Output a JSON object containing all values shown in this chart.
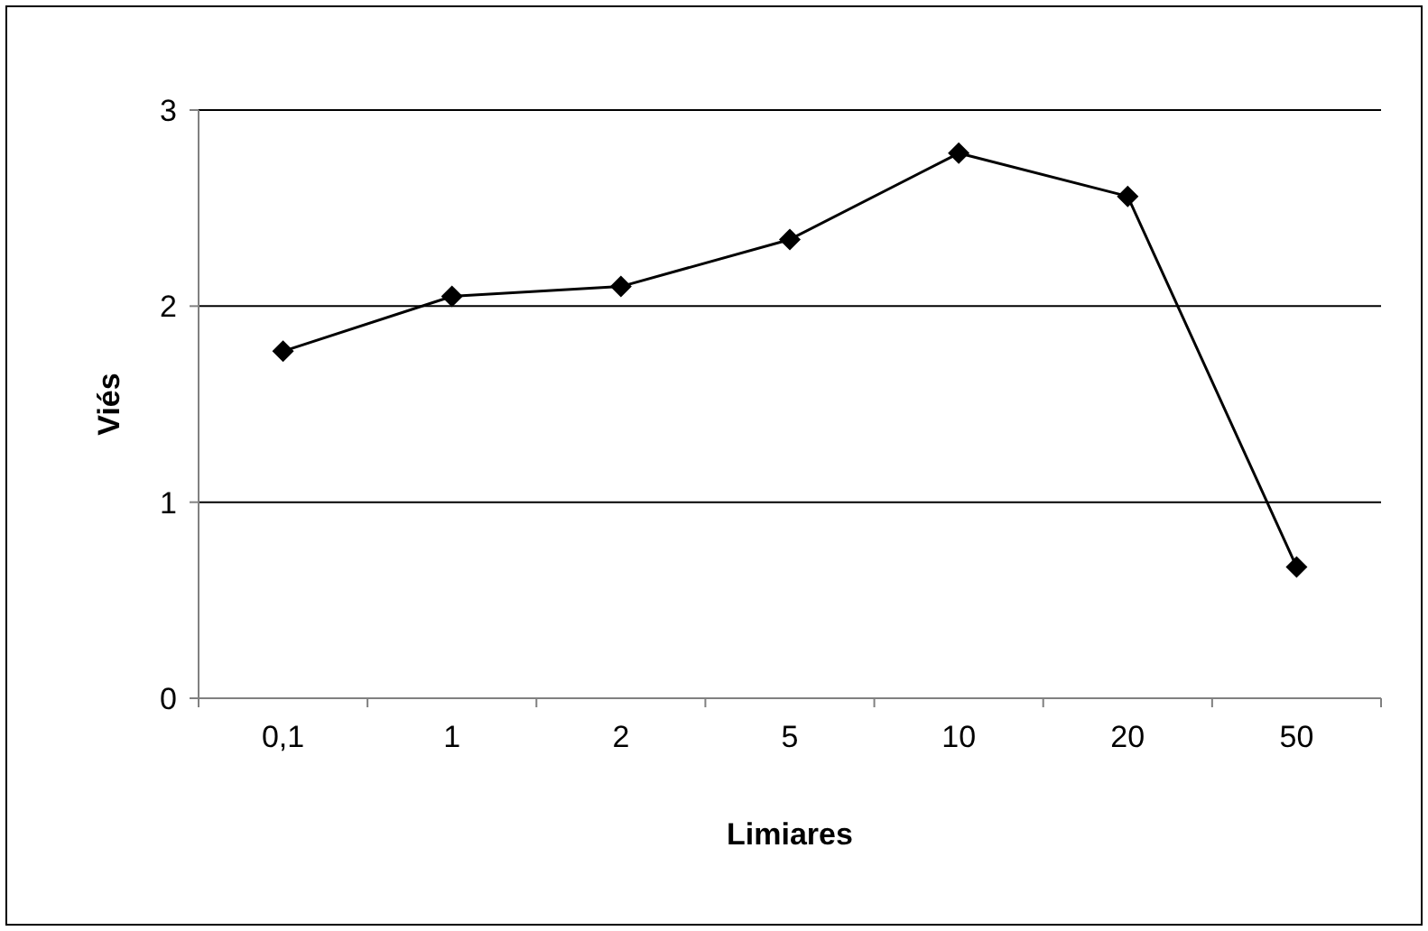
{
  "chart_data": {
    "type": "line",
    "xlabel": "Limiares",
    "ylabel": "Viés",
    "categories": [
      "0,1",
      "1",
      "2",
      "5",
      "10",
      "20",
      "50"
    ],
    "series": [
      {
        "color": "#000000",
        "values": [
          1.77,
          2.05,
          2.1,
          2.34,
          2.78,
          2.56,
          0.67
        ]
      }
    ],
    "ylim": [
      0,
      3
    ],
    "yticks": [
      0,
      1,
      2,
      3
    ],
    "grid": "y",
    "marker": "diamond",
    "line_style": "solid"
  }
}
